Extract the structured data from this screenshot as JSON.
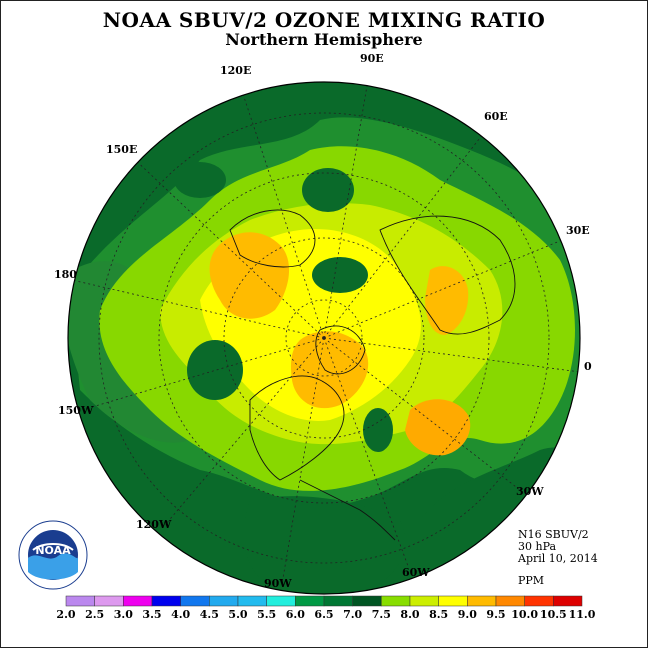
{
  "title": "NOAA SBUV/2 OZONE MIXING RATIO",
  "subtitle": "Northern Hemisphere",
  "longitude_labels": [
    "90E",
    "120E",
    "60E",
    "150E",
    "30E",
    "180",
    "0",
    "150W",
    "30W",
    "120W",
    "60W",
    "90W"
  ],
  "info": {
    "instrument": "N16 SBUV/2",
    "level": "30 hPa",
    "date": "April 10, 2014",
    "units": "PPM"
  },
  "colorbar": {
    "ticks": [
      "2.0",
      "2.5",
      "3.0",
      "3.5",
      "4.0",
      "4.5",
      "5.0",
      "5.5",
      "6.0",
      "6.5",
      "7.0",
      "7.5",
      "8.0",
      "8.5",
      "9.0",
      "9.5",
      "10.0",
      "10.5",
      "11.0"
    ],
    "colors": [
      "#bb88ee",
      "#dd99ee",
      "#ee00ee",
      "#0000ee",
      "#1177ee",
      "#22aaee",
      "#22bbee",
      "#22eedd",
      "#009944",
      "#007733",
      "#005522",
      "#88dd00",
      "#ccee00",
      "#ffff00",
      "#ffbb00",
      "#ff8800",
      "#ff3300",
      "#dd0000",
      "#885533"
    ]
  },
  "logo_text": "NOAA"
}
